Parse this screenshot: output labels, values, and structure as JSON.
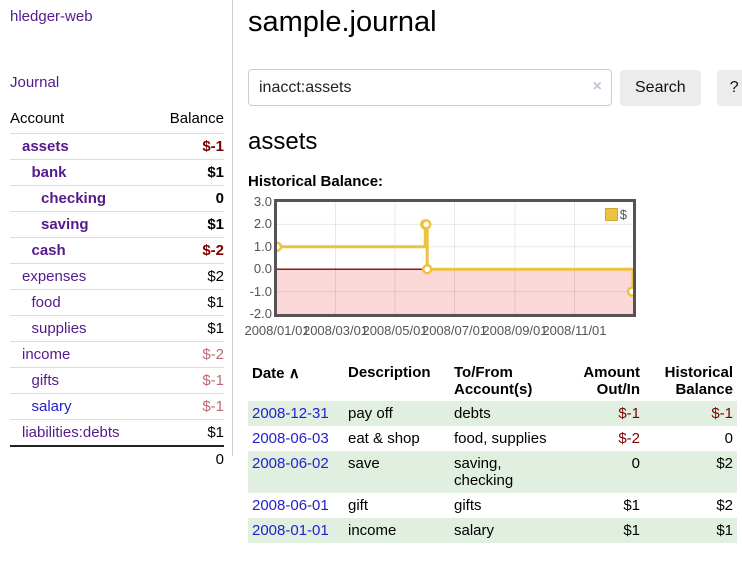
{
  "app": {
    "brand": "hledger-web",
    "nav_journal": "Journal"
  },
  "sidebar": {
    "header": {
      "account": "Account",
      "balance": "Balance"
    },
    "accounts": [
      {
        "name": "assets",
        "balance": "$-1",
        "level": 0,
        "bold": true,
        "neg": "strong",
        "link": "purple"
      },
      {
        "name": "bank",
        "balance": "$1",
        "level": 1,
        "bold": true,
        "neg": "none",
        "link": "purple"
      },
      {
        "name": "checking",
        "balance": "0",
        "level": 2,
        "bold": true,
        "neg": "none",
        "link": "purple"
      },
      {
        "name": "saving",
        "balance": "$1",
        "level": 2,
        "bold": true,
        "neg": "none",
        "link": "purple"
      },
      {
        "name": "cash",
        "balance": "$-2",
        "level": 1,
        "bold": true,
        "neg": "strong",
        "link": "purple"
      },
      {
        "name": "expenses",
        "balance": "$2",
        "level": 0,
        "bold": false,
        "neg": "none",
        "link": "purple"
      },
      {
        "name": "food",
        "balance": "$1",
        "level": 1,
        "bold": false,
        "neg": "none",
        "link": "purple"
      },
      {
        "name": "supplies",
        "balance": "$1",
        "level": 1,
        "bold": false,
        "neg": "none",
        "link": "purple"
      },
      {
        "name": "income",
        "balance": "$-2",
        "level": 0,
        "bold": false,
        "neg": "soft",
        "link": "purple"
      },
      {
        "name": "gifts",
        "balance": "$-1",
        "level": 1,
        "bold": false,
        "neg": "soft",
        "link": "purple"
      },
      {
        "name": "salary",
        "balance": "$-1",
        "level": 1,
        "bold": false,
        "neg": "soft",
        "link": "blue"
      },
      {
        "name": "liabilities:debts",
        "balance": "$1",
        "level": 0,
        "bold": false,
        "neg": "none",
        "link": "purple"
      }
    ],
    "total": "0"
  },
  "header": {
    "title": "sample.journal"
  },
  "search": {
    "value": "inacct:assets",
    "clear_icon": "×",
    "button_label": "Search",
    "help_label": "?"
  },
  "account_page": {
    "title": "assets",
    "chart_heading": "Historical Balance:"
  },
  "chart_data": {
    "type": "line",
    "style": "step",
    "title": "Historical Balance",
    "series": [
      {
        "name": "$",
        "color": "#edc240",
        "points": [
          [
            "2008-01-01",
            1
          ],
          [
            "2008-06-01",
            2
          ],
          [
            "2008-06-02",
            2
          ],
          [
            "2008-06-03",
            0
          ],
          [
            "2008-12-31",
            -1
          ]
        ]
      }
    ],
    "xrange": [
      "2008-01-01",
      "2008-12-31"
    ],
    "ylim": [
      -2.0,
      3.0
    ],
    "yticks": [
      "3.0",
      "2.0",
      "1.0",
      "0.0",
      "-1.0",
      "-2.0"
    ],
    "xticks": [
      {
        "label": "2008/01/01",
        "date": "2008-01-01"
      },
      {
        "label": "2008/03/01",
        "date": "2008-03-01"
      },
      {
        "label": "2008/05/01",
        "date": "2008-05-01"
      },
      {
        "label": "2008/07/01",
        "date": "2008-07-01"
      },
      {
        "label": "2008/09/01",
        "date": "2008-09-01"
      },
      {
        "label": "2008/11/01",
        "date": "2008-11-01"
      }
    ],
    "grid": true,
    "legend": {
      "label": "$",
      "position": "top-right"
    },
    "negative_region_fill": "#fbd8d8",
    "zero_line_color": "#9d1313"
  },
  "register": {
    "columns": {
      "date": "Date",
      "sort_caret": "∧",
      "description": "Description",
      "accounts_line1": "To/From",
      "accounts_line2": "Account(s)",
      "amount_line1": "Amount",
      "amount_line2": "Out/In",
      "balance_line1": "Historical",
      "balance_line2": "Balance"
    },
    "rows": [
      {
        "date": "2008-12-31",
        "description": "pay off",
        "accounts": "debts",
        "amount": "$-1",
        "balance": "$-1",
        "amount_neg": true,
        "balance_neg": true
      },
      {
        "date": "2008-06-03",
        "description": "eat & shop",
        "accounts": "food, supplies",
        "amount": "$-2",
        "balance": "0",
        "amount_neg": true,
        "balance_neg": false
      },
      {
        "date": "2008-06-02",
        "description": "save",
        "accounts": "saving, checking",
        "amount": "0",
        "balance": "$2",
        "amount_neg": false,
        "balance_neg": false
      },
      {
        "date": "2008-06-01",
        "description": "gift",
        "accounts": "gifts",
        "amount": "$1",
        "balance": "$2",
        "amount_neg": false,
        "balance_neg": false
      },
      {
        "date": "2008-01-01",
        "description": "income",
        "accounts": "salary",
        "amount": "$1",
        "balance": "$1",
        "amount_neg": false,
        "balance_neg": false
      }
    ]
  },
  "colors": {
    "link_purple": "#551a8b",
    "link_blue": "#2222cc",
    "negative_strong": "#7d0000",
    "negative_soft": "#bb6a74",
    "row_green": "#e0efe0",
    "series_gold": "#edc240",
    "plot_border": "#545454",
    "zero_line": "#9d1313",
    "negative_fill": "#fbd8d8"
  }
}
